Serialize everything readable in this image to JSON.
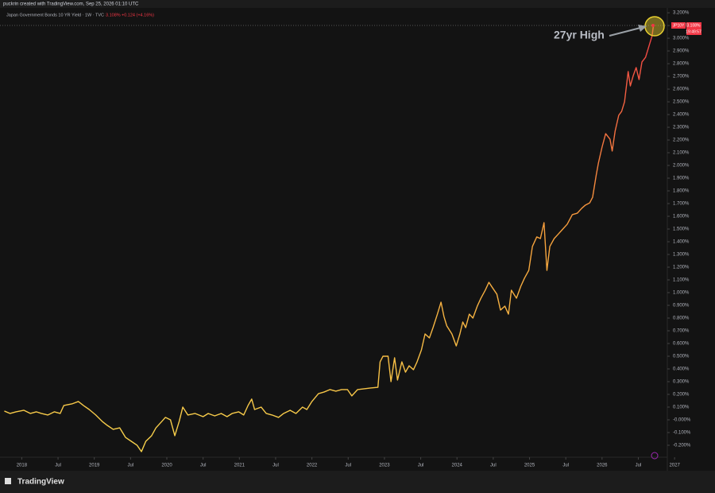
{
  "chart_data": {
    "type": "line",
    "caption": "puckrin created with TradingView.com, Sep 25, 2026 01:10 UTC",
    "title": "Japan Government Bonds 10 YR Yield · 1W · TVC",
    "legend_price": "3.108%",
    "legend_change": "+0.124 (+4.16%)",
    "badge_symbol": "JP10Y",
    "badge_price": "3.108%",
    "badge_time": "19:49:57",
    "annotation": "27yr High",
    "footer": "TradingView",
    "xlim": [
      2017.7,
      2026.9
    ],
    "ylim": [
      -0.294,
      3.238
    ],
    "grid": false,
    "xticks": [
      2018,
      {
        "value": 2018.5,
        "label": "Jul"
      },
      2019,
      {
        "value": 2019.5,
        "label": "Jul"
      },
      2020,
      {
        "value": 2020.5,
        "label": "Jul"
      },
      2021,
      {
        "value": 2021.5,
        "label": "Jul"
      },
      2022,
      {
        "value": 2022.5,
        "label": "Jul"
      },
      2023,
      {
        "value": 2023.5,
        "label": "Jul"
      },
      2024,
      {
        "value": 2024.5,
        "label": "Jul"
      },
      2025,
      {
        "value": 2025.5,
        "label": "Jul"
      },
      2026,
      {
        "value": 2026.5,
        "label": "Jul"
      },
      2027
    ],
    "yticks": [
      {
        "value": 3.2,
        "label": "3.200%"
      },
      {
        "value": 3.1,
        "label": "3.100%"
      },
      {
        "value": 3.0,
        "label": "3.000%"
      },
      {
        "value": 2.9,
        "label": "2.900%"
      },
      {
        "value": 2.8,
        "label": "2.800%"
      },
      {
        "value": 2.7,
        "label": "2.700%"
      },
      {
        "value": 2.6,
        "label": "2.600%"
      },
      {
        "value": 2.5,
        "label": "2.500%"
      },
      {
        "value": 2.4,
        "label": "2.400%"
      },
      {
        "value": 2.3,
        "label": "2.300%"
      },
      {
        "value": 2.2,
        "label": "2.200%"
      },
      {
        "value": 2.1,
        "label": "2.100%"
      },
      {
        "value": 2.0,
        "label": "2.000%"
      },
      {
        "value": 1.9,
        "label": "1.900%"
      },
      {
        "value": 1.8,
        "label": "1.800%"
      },
      {
        "value": 1.7,
        "label": "1.700%"
      },
      {
        "value": 1.6,
        "label": "1.600%"
      },
      {
        "value": 1.5,
        "label": "1.500%"
      },
      {
        "value": 1.4,
        "label": "1.400%"
      },
      {
        "value": 1.3,
        "label": "1.300%"
      },
      {
        "value": 1.2,
        "label": "1.200%"
      },
      {
        "value": 1.1,
        "label": "1.100%"
      },
      {
        "value": 1.0,
        "label": "1.000%"
      },
      {
        "value": 0.9,
        "label": "0.900%"
      },
      {
        "value": 0.8,
        "label": "0.800%"
      },
      {
        "value": 0.7,
        "label": "0.700%"
      },
      {
        "value": 0.6,
        "label": "0.600%"
      },
      {
        "value": 0.5,
        "label": "0.500%"
      },
      {
        "value": 0.4,
        "label": "0.400%"
      },
      {
        "value": 0.3,
        "label": "0.300%"
      },
      {
        "value": 0.2,
        "label": "0.200%"
      },
      {
        "value": 0.1,
        "label": "0.100%"
      },
      {
        "value": 0,
        "label": "-0.000%"
      },
      {
        "value": -0.1,
        "label": "-0.100%"
      },
      {
        "value": -0.2,
        "label": "-0.200%"
      }
    ],
    "series": [
      {
        "name": "JP10Y",
        "gradient": [
          "#f7d44c",
          "#f5a03c",
          "#f23645"
        ],
        "x": [
          2017.76,
          2017.84,
          2017.92,
          2018.03,
          2018.12,
          2018.2,
          2018.27,
          2018.36,
          2018.45,
          2018.53,
          2018.58,
          2018.69,
          2018.78,
          2018.85,
          2018.93,
          2019.02,
          2019.11,
          2019.18,
          2019.26,
          2019.35,
          2019.43,
          2019.51,
          2019.59,
          2019.65,
          2019.71,
          2019.79,
          2019.85,
          2019.93,
          2019.98,
          2020.05,
          2020.11,
          2020.17,
          2020.22,
          2020.29,
          2020.39,
          2020.5,
          2020.57,
          2020.66,
          2020.75,
          2020.83,
          2020.9,
          2020.99,
          2021.06,
          2021.12,
          2021.17,
          2021.21,
          2021.3,
          2021.37,
          2021.45,
          2021.54,
          2021.61,
          2021.7,
          2021.78,
          2021.87,
          2021.93,
          2022.0,
          2022.09,
          2022.17,
          2022.25,
          2022.33,
          2022.41,
          2022.49,
          2022.55,
          2022.63,
          2022.72,
          2022.81,
          2022.91,
          2022.94,
          2022.98,
          2023.05,
          2023.09,
          2023.14,
          2023.18,
          2023.24,
          2023.29,
          2023.34,
          2023.4,
          2023.45,
          2023.51,
          2023.56,
          2023.62,
          2023.67,
          2023.73,
          2023.78,
          2023.82,
          2023.86,
          2023.93,
          2023.99,
          2024.04,
          2024.08,
          2024.12,
          2024.17,
          2024.22,
          2024.28,
          2024.33,
          2024.39,
          2024.44,
          2024.49,
          2024.55,
          2024.6,
          2024.66,
          2024.71,
          2024.75,
          2024.82,
          2024.88,
          2024.93,
          2024.99,
          2025.04,
          2025.1,
          2025.15,
          2025.2,
          2025.24,
          2025.28,
          2025.34,
          2025.39,
          2025.46,
          2025.52,
          2025.59,
          2025.66,
          2025.72,
          2025.77,
          2025.83,
          2025.87,
          2025.92,
          2025.95,
          2026.0,
          2026.05,
          2026.11,
          2026.14,
          2026.18,
          2026.23,
          2026.27,
          2026.31,
          2026.36,
          2026.39,
          2026.43,
          2026.47,
          2026.51,
          2026.55,
          2026.6,
          2026.64,
          2026.69,
          2026.71
        ],
        "values": [
          0.069,
          0.05,
          0.063,
          0.075,
          0.05,
          0.063,
          0.05,
          0.038,
          0.063,
          0.05,
          0.113,
          0.125,
          0.144,
          0.113,
          0.081,
          0.038,
          -0.013,
          -0.044,
          -0.075,
          -0.063,
          -0.138,
          -0.169,
          -0.2,
          -0.25,
          -0.169,
          -0.125,
          -0.063,
          -0.013,
          0.019,
          0.0,
          -0.125,
          -0.013,
          0.1,
          0.038,
          0.05,
          0.025,
          0.05,
          0.031,
          0.05,
          0.025,
          0.05,
          0.063,
          0.038,
          0.113,
          0.163,
          0.081,
          0.1,
          0.05,
          0.038,
          0.019,
          0.05,
          0.075,
          0.05,
          0.1,
          0.081,
          0.144,
          0.206,
          0.219,
          0.238,
          0.225,
          0.238,
          0.238,
          0.188,
          0.238,
          0.244,
          0.25,
          0.256,
          0.456,
          0.5,
          0.5,
          0.3,
          0.488,
          0.313,
          0.456,
          0.375,
          0.425,
          0.394,
          0.456,
          0.55,
          0.675,
          0.644,
          0.725,
          0.831,
          0.925,
          0.813,
          0.738,
          0.675,
          0.581,
          0.675,
          0.769,
          0.725,
          0.831,
          0.8,
          0.894,
          0.956,
          1.019,
          1.081,
          1.038,
          0.988,
          0.863,
          0.894,
          0.831,
          1.019,
          0.956,
          1.05,
          1.113,
          1.175,
          1.363,
          1.438,
          1.425,
          1.55,
          1.175,
          1.363,
          1.425,
          1.456,
          1.5,
          1.538,
          1.613,
          1.625,
          1.663,
          1.688,
          1.706,
          1.75,
          1.925,
          2.019,
          2.144,
          2.25,
          2.206,
          2.113,
          2.269,
          2.394,
          2.425,
          2.5,
          2.738,
          2.625,
          2.706,
          2.769,
          2.675,
          2.813,
          2.85,
          2.925,
          3.019,
          3.108
        ]
      }
    ]
  }
}
